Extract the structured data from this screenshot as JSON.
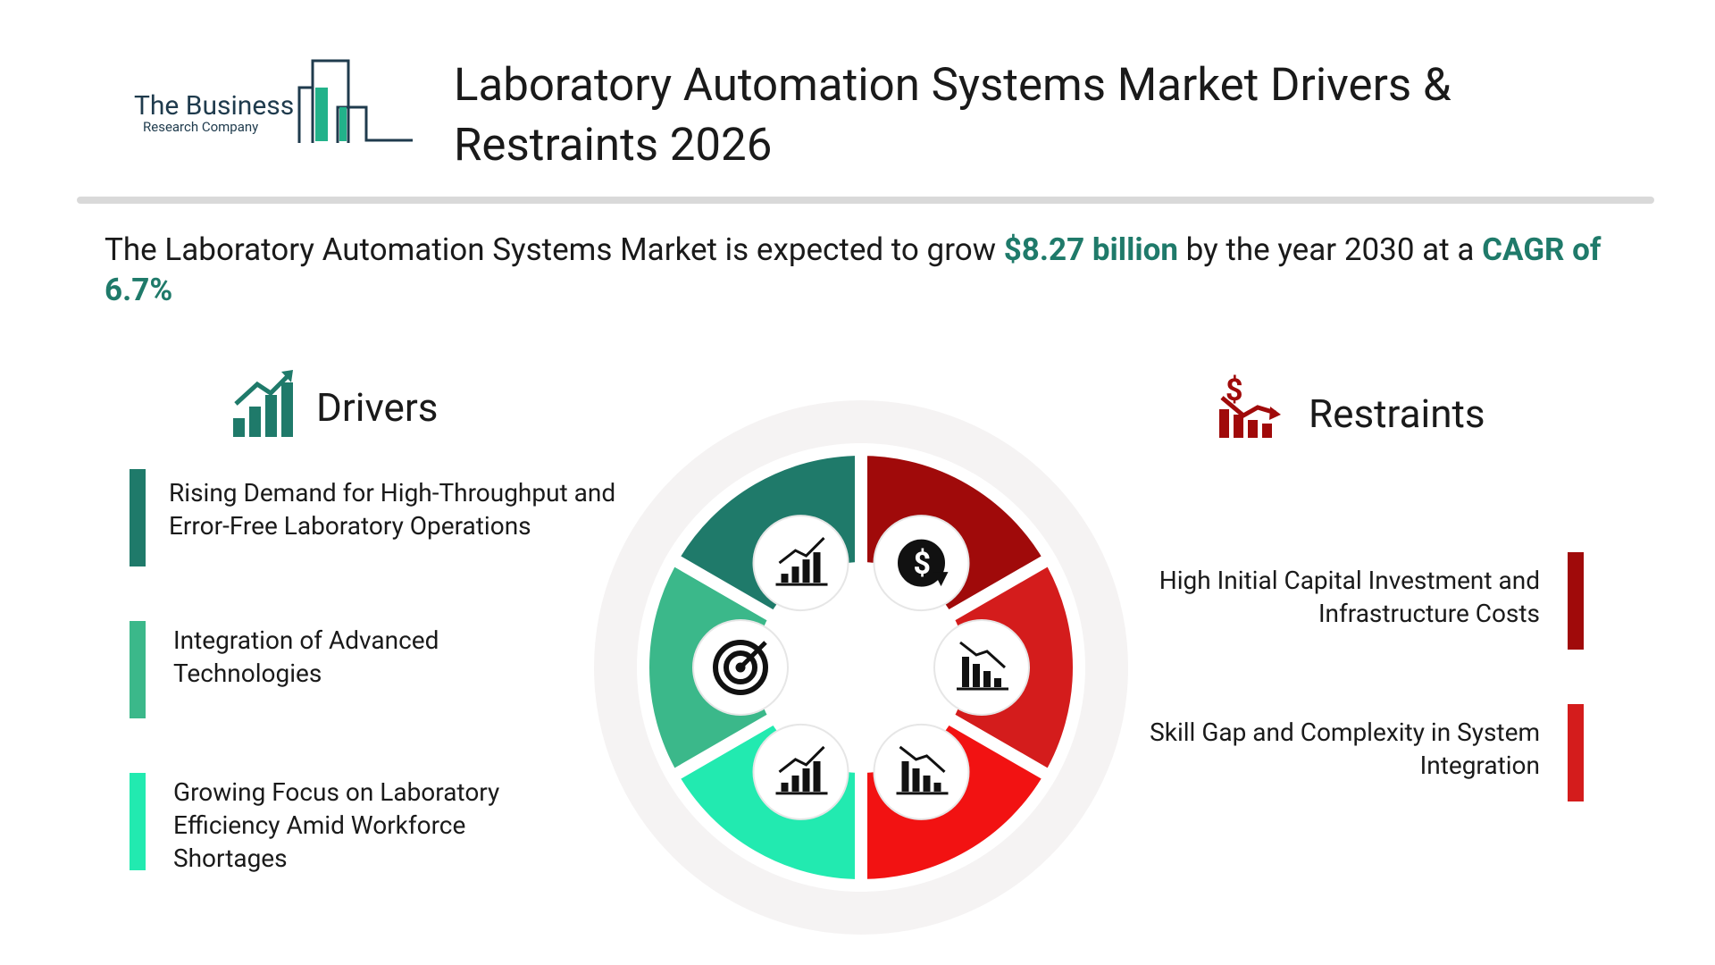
{
  "logo": {
    "line1": "The Business",
    "line2": "Research Company"
  },
  "header": {
    "title": "Laboratory Automation Systems Market Drivers & Restraints 2026"
  },
  "summary": {
    "parts": [
      "The Laboratory Automation Systems Market is expected to grow ",
      "$8.27 billion",
      " by the year 2030 at a ",
      "CAGR of 6.7%"
    ]
  },
  "drivers": {
    "heading": "Drivers",
    "items": [
      "Rising Demand for High-Throughput and Error-Free Laboratory Operations",
      "Integration of Advanced Technologies",
      "Growing Focus on Laboratory Efficiency Amid Workforce Shortages"
    ]
  },
  "restraints": {
    "heading": "Restraints",
    "items": [
      "High Initial Capital Investment and Infrastructure Costs",
      "Skill Gap and Complexity in System Integration"
    ]
  }
}
